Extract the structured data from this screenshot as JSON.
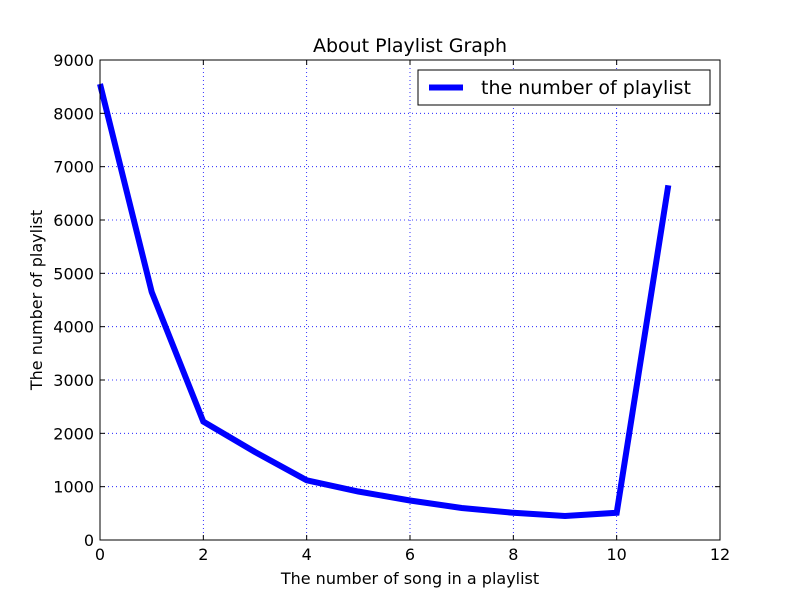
{
  "chart_data": {
    "type": "line",
    "title": "About Playlist Graph",
    "xlabel": "The number of song in a playlist",
    "ylabel": "The number of playlist",
    "xlim": [
      0,
      12
    ],
    "ylim": [
      0,
      9000
    ],
    "xticks": [
      0,
      2,
      4,
      6,
      8,
      10,
      12
    ],
    "yticks": [
      0,
      1000,
      2000,
      3000,
      4000,
      5000,
      6000,
      7000,
      8000,
      9000
    ],
    "grid": true,
    "legend_position": "top-right",
    "series": [
      {
        "name": "the number of playlist",
        "color": "#0000ff",
        "x": [
          0,
          1,
          2,
          3,
          4,
          5,
          6,
          7,
          8,
          9,
          10,
          11
        ],
        "y": [
          8550,
          4650,
          2220,
          1650,
          1120,
          910,
          740,
          600,
          510,
          450,
          510,
          6650
        ]
      }
    ]
  }
}
